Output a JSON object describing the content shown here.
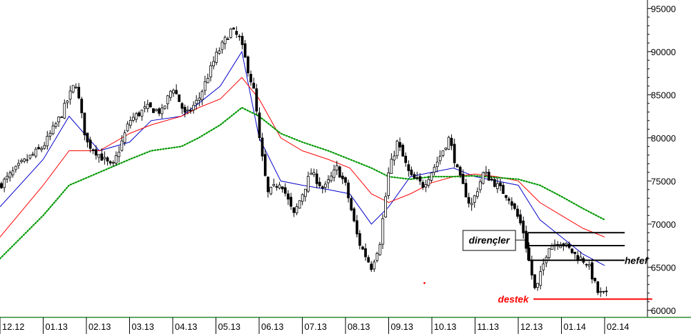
{
  "chart_data": {
    "type": "candlestick",
    "title": "",
    "xlabel": "",
    "ylabel": "",
    "ylim": [
      59500,
      95500
    ],
    "y_ticks": [
      60000,
      65000,
      70000,
      75000,
      80000,
      85000,
      90000,
      95000
    ],
    "y_tick_labels": [
      "60000",
      "65000",
      "70000",
      "75000",
      "80000",
      "85000",
      "90000",
      "95000"
    ],
    "x_tick_labels": [
      "12.12",
      "01.13",
      "02.13",
      "03.13",
      "04.13",
      "05.13",
      "06.13",
      "07.13",
      "08.13",
      "09.13",
      "10.13",
      "11.13",
      "12.13",
      "01.14",
      "02.14"
    ],
    "grid": false,
    "price_samples": {
      "months": [
        0,
        0.5,
        1,
        1.4,
        1.75,
        2.0,
        2.3,
        2.6,
        3.0,
        3.4,
        3.75,
        4.0,
        4.3,
        4.6,
        5.0,
        5.35,
        5.55,
        5.9,
        6.0,
        6.2,
        6.5,
        6.8,
        7.2,
        7.5,
        7.8,
        8.0,
        8.3,
        8.6,
        8.8,
        9.0,
        9.2,
        9.5,
        9.8,
        10.1,
        10.4,
        10.6,
        10.9,
        11.2,
        11.5,
        11.8,
        12.1,
        12.4,
        12.7,
        13.0,
        13.3,
        13.6,
        13.85,
        14.0
      ],
      "close": [
        74500,
        77000,
        79000,
        82500,
        86500,
        79500,
        78000,
        76500,
        82000,
        83500,
        83000,
        86000,
        82500,
        84500,
        89500,
        92500,
        91500,
        85000,
        80000,
        73500,
        75000,
        71000,
        76000,
        74000,
        76500,
        74500,
        68000,
        65000,
        68000,
        76000,
        79500,
        75500,
        74500,
        77000,
        80000,
        76000,
        72000,
        76000,
        74500,
        73000,
        69500,
        62000,
        67500,
        68000,
        66500,
        65500,
        62000,
        61800
      ]
    },
    "series": [
      {
        "name": "",
        "color": "#0000cc",
        "style": "solid",
        "x": [
          0,
          1,
          1.6,
          2.3,
          3.0,
          3.5,
          4.2,
          4.6,
          5.1,
          5.6,
          6.0,
          6.5,
          7.0,
          7.6,
          8.1,
          8.6,
          9.0,
          9.5,
          10.0,
          10.5,
          11.0,
          11.5,
          12.0,
          12.5,
          13.0,
          13.5,
          14.0
        ],
        "values": [
          72000,
          77500,
          82500,
          78500,
          79500,
          82000,
          82500,
          84000,
          86000,
          90000,
          80000,
          75000,
          74500,
          74000,
          73500,
          70000,
          72000,
          75500,
          76000,
          76500,
          75500,
          75000,
          74500,
          70500,
          68500,
          66500,
          65200
        ]
      },
      {
        "name": "",
        "color": "#ff0000",
        "style": "solid",
        "x": [
          0,
          1,
          1.6,
          2.3,
          3.0,
          3.5,
          4.2,
          4.6,
          5.1,
          5.6,
          6.0,
          6.5,
          7.0,
          7.6,
          8.1,
          8.6,
          9.0,
          9.5,
          10.0,
          10.5,
          11.0,
          11.5,
          12.0,
          12.5,
          13.0,
          13.5,
          14.0
        ],
        "values": [
          68500,
          74500,
          78500,
          78500,
          80500,
          81500,
          82500,
          83500,
          84500,
          87000,
          84500,
          80000,
          78500,
          77500,
          76500,
          73500,
          72500,
          73500,
          74800,
          75500,
          75800,
          75500,
          75000,
          72500,
          71000,
          69500,
          68500
        ]
      },
      {
        "name": "",
        "color": "#009900",
        "style": "dotted",
        "x": [
          0,
          1,
          1.6,
          2.3,
          3.0,
          3.5,
          4.2,
          4.6,
          5.1,
          5.6,
          6.0,
          6.5,
          7.0,
          7.6,
          8.1,
          8.6,
          9.0,
          9.5,
          10.0,
          10.5,
          11.0,
          11.5,
          12.0,
          12.5,
          13.0,
          13.5,
          14.0
        ],
        "values": [
          66000,
          71000,
          74500,
          76000,
          77500,
          78500,
          79000,
          80000,
          81500,
          83500,
          82500,
          80500,
          79500,
          78500,
          77500,
          76500,
          75500,
          75200,
          75500,
          75500,
          75600,
          75400,
          75200,
          74500,
          73200,
          71800,
          70500
        ]
      }
    ],
    "annotations": {
      "label_box_text": "dirençler",
      "target_text": "hefef",
      "support_text": "destek",
      "resistance_levels": [
        69000,
        67500,
        65800
      ],
      "target_level": 65800,
      "support_level": 61300,
      "label_color": "#000000",
      "support_color": "#ff0000"
    }
  }
}
